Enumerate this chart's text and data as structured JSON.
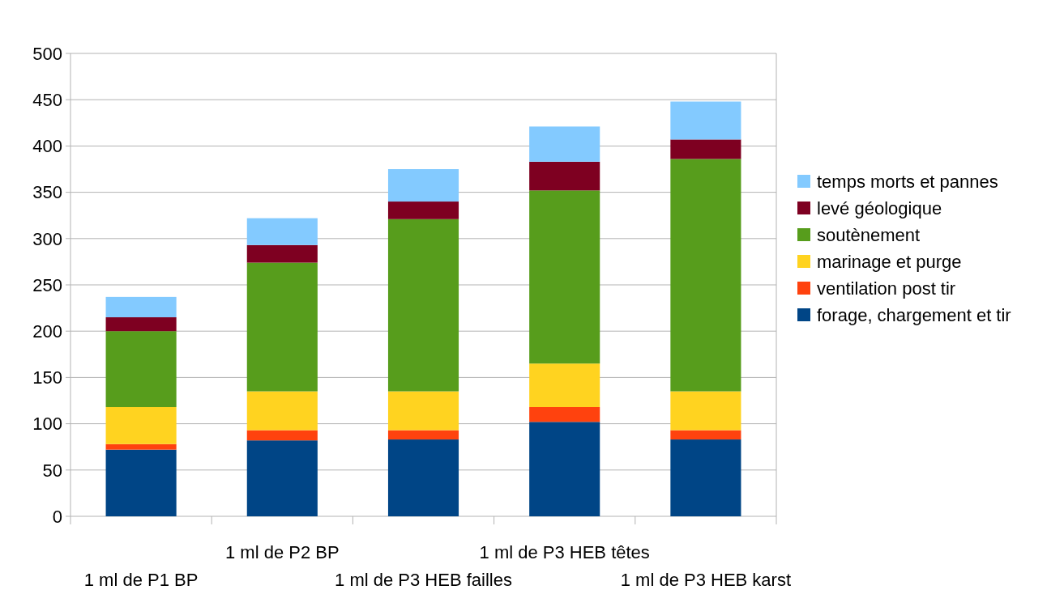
{
  "chart_data": {
    "type": "bar",
    "stacked": true,
    "categories": [
      "1 ml de P1 BP",
      "1 ml de P2 BP",
      "1 ml de P3 HEB failles",
      "1 ml de P3 HEB têtes",
      "1 ml de P3 HEB karst"
    ],
    "series": [
      {
        "name": "forage, chargement et tir",
        "color": "#004586",
        "values": [
          72,
          82,
          83,
          102,
          83
        ]
      },
      {
        "name": "ventilation post tir",
        "color": "#ff420e",
        "values": [
          6,
          11,
          10,
          16,
          10
        ]
      },
      {
        "name": "marinage et purge",
        "color": "#ffd320",
        "values": [
          40,
          42,
          42,
          47,
          42
        ]
      },
      {
        "name": "soutènement",
        "color": "#579d1c",
        "values": [
          82,
          139,
          186,
          187,
          251
        ]
      },
      {
        "name": "levé géologique",
        "color": "#7e0021",
        "values": [
          15,
          19,
          19,
          31,
          21
        ]
      },
      {
        "name": "temps morts et pannes",
        "color": "#83caff",
        "values": [
          22,
          29,
          35,
          38,
          41
        ]
      }
    ],
    "ylim": [
      0,
      500
    ],
    "yticks": [
      0,
      50,
      100,
      150,
      200,
      250,
      300,
      350,
      400,
      450,
      500
    ],
    "grid": "y",
    "legend": "right"
  }
}
